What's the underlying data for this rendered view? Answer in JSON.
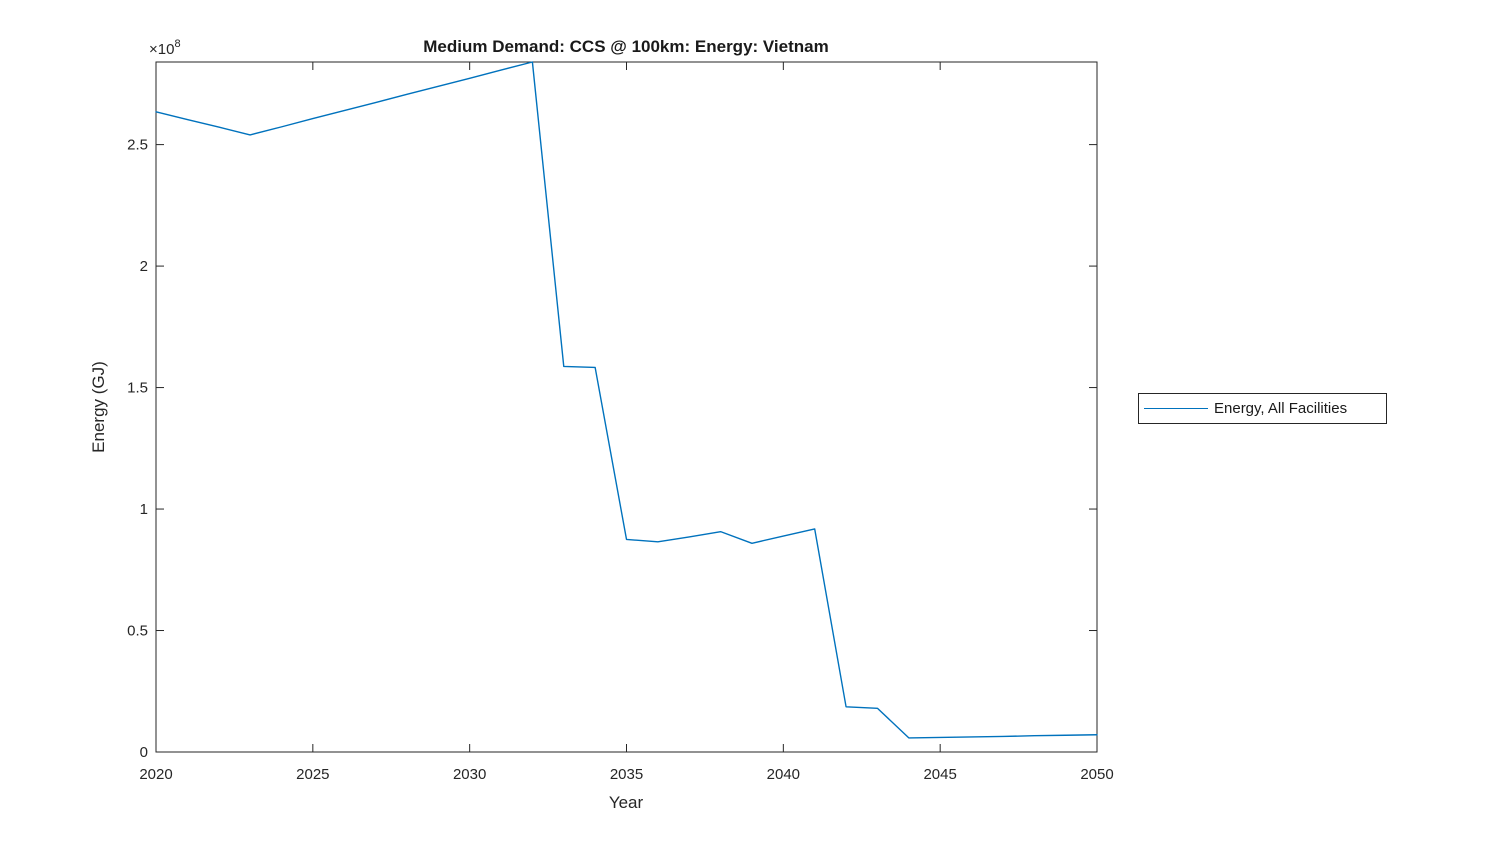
{
  "figure": {
    "background": "#ffffff",
    "axes_color": "#262626"
  },
  "chart_data": {
    "type": "line",
    "title": "Medium Demand: CCS @ 100km: Energy: Vietnam",
    "xlabel": "Year",
    "ylabel": "Energy (GJ)",
    "y_scale": {
      "base": "×10",
      "exponent": "8"
    },
    "grid": false,
    "xlim": [
      2020,
      2050
    ],
    "ylim": [
      0,
      284000000
    ],
    "x_ticks": [
      2020,
      2025,
      2030,
      2035,
      2040,
      2045,
      2050
    ],
    "y_ticks": [
      0,
      50000000,
      100000000,
      150000000,
      200000000,
      250000000
    ],
    "y_tick_labels": [
      "0",
      "0.5",
      "1",
      "1.5",
      "2",
      "2.5"
    ],
    "x": [
      2020,
      2021,
      2022,
      2023,
      2024,
      2025,
      2026,
      2027,
      2028,
      2029,
      2030,
      2031,
      2032,
      2033,
      2034,
      2035,
      2036,
      2037,
      2038,
      2039,
      2040,
      2041,
      2042,
      2043,
      2044,
      2045,
      2046,
      2047,
      2048,
      2049,
      2050
    ],
    "series": [
      {
        "name": "Energy, All Facilities",
        "color": "#0072BD",
        "values": [
          263500000,
          260300000,
          257200000,
          254000000,
          257300000,
          260700000,
          264000000,
          267300000,
          270700000,
          274000000,
          277300000,
          280700000,
          284000000,
          158700000,
          158300000,
          87500000,
          86500000,
          88500000,
          90700000,
          85900000,
          88900000,
          91800000,
          18600000,
          18000000,
          5800000,
          6000000,
          6200000,
          6400000,
          6700000,
          6900000,
          7100000
        ]
      }
    ],
    "legend": {
      "position": "right-outside",
      "entries": [
        "Energy, All Facilities"
      ]
    }
  }
}
